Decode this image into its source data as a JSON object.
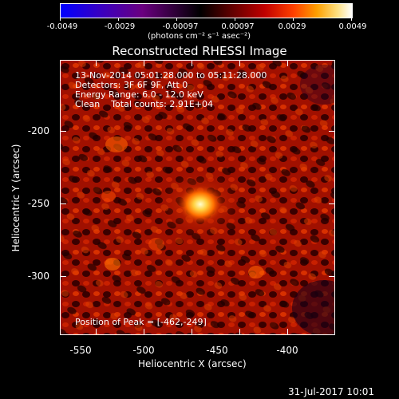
{
  "colorbar": {
    "tick_labels": [
      "-0.0049",
      "-0.0029",
      "-0.00097",
      "0.00097",
      "0.0029",
      "0.0049"
    ],
    "units": "(photons cm⁻² s⁻¹ asec⁻²)"
  },
  "title": "Reconstructed RHESSI Image",
  "info": {
    "line1": "13-Nov-2014 05:01:28.000 to 05:11:28.000",
    "line2": "Detectors: 3F 6F 9F, Att 0",
    "line3": "Energy Range: 6.0 - 12.0 keV",
    "line4": "Clean    Total counts: 2.91E+04"
  },
  "peak_label": "Position of Peak = [-462,-249]",
  "x_axis": {
    "label": "Heliocentric X (arcsec)",
    "ticks": [
      "-550",
      "-500",
      "-450",
      "-400"
    ]
  },
  "y_axis": {
    "label": "Heliocentric Y (arcsec)",
    "ticks": [
      "-200",
      "-250",
      "-300"
    ]
  },
  "footer_timestamp": "31-Jul-2017 10:01"
}
